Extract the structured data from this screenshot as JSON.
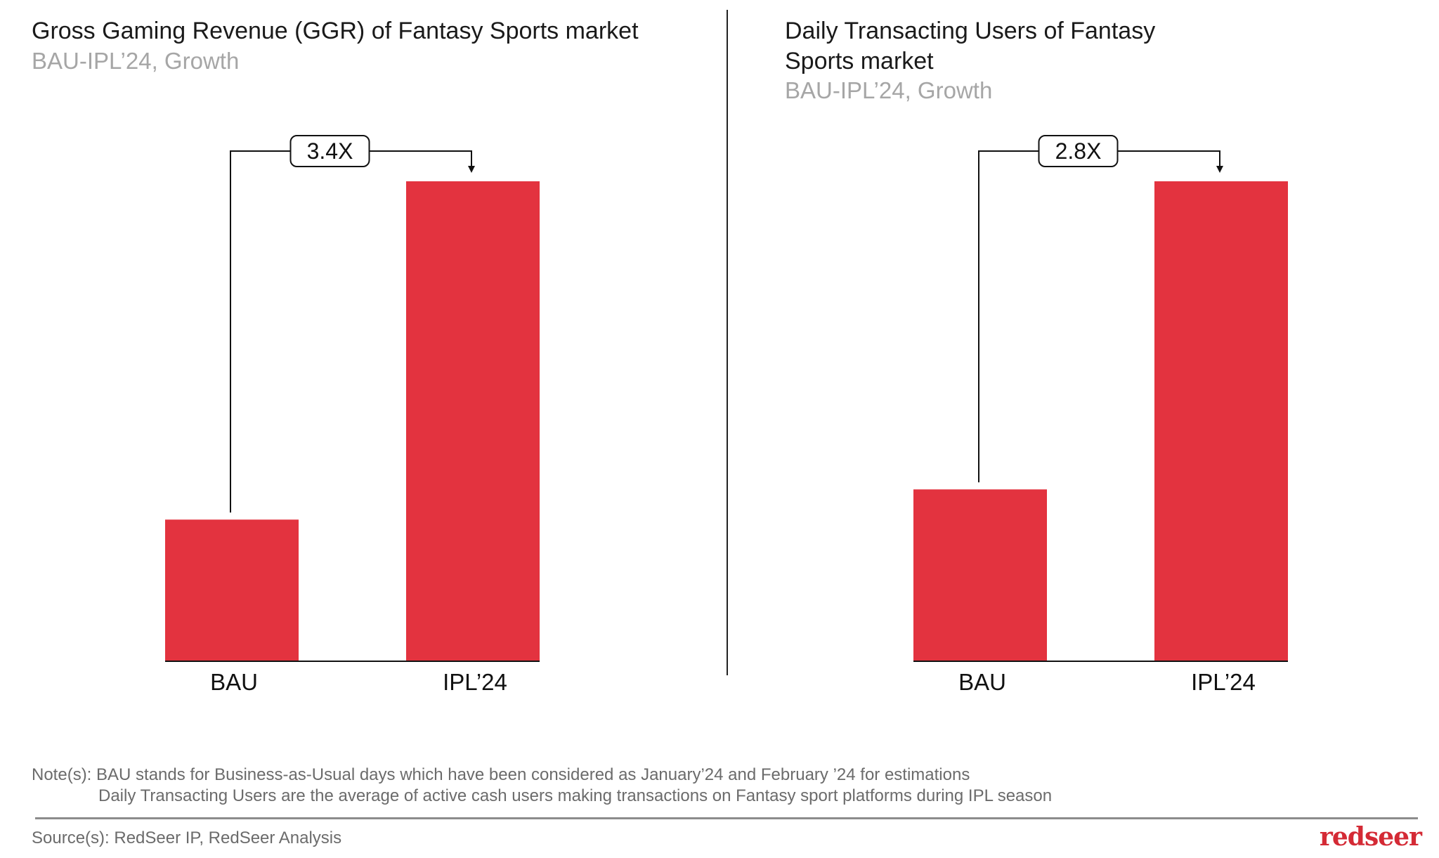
{
  "panels": [
    {
      "title": "Gross Gaming Revenue (GGR) of Fantasy Sports market",
      "subtitle": "BAU-IPL’24, Growth",
      "growth_label": "3.4X"
    },
    {
      "title": "Daily Transacting Users of Fantasy Sports market",
      "subtitle": "BAU-IPL’24, Growth",
      "growth_label": "2.8X"
    }
  ],
  "chart_data": [
    {
      "type": "bar",
      "title": "Gross Gaming Revenue (GGR) of Fantasy Sports market",
      "subtitle": "BAU-IPL’24, Growth",
      "categories": [
        "BAU",
        "IPL’24"
      ],
      "values": [
        1,
        3.4
      ],
      "annotation": "3.4X",
      "color": "#e3333f",
      "grid": false
    },
    {
      "type": "bar",
      "title": "Daily Transacting Users of Fantasy Sports market",
      "subtitle": "BAU-IPL’24, Growth",
      "categories": [
        "BAU",
        "IPL’24"
      ],
      "values": [
        1,
        2.8
      ],
      "annotation": "2.8X",
      "color": "#e3333f",
      "grid": false
    }
  ],
  "notes": {
    "line1": "Note(s): BAU stands for Business-as-Usual days which have been considered as January’24 and February ’24 for estimations",
    "line2": "Daily Transacting Users are the average of active cash users making transactions on Fantasy sport platforms during IPL season"
  },
  "source": "Source(s): RedSeer IP, RedSeer Analysis",
  "logo": "redseer",
  "colors": {
    "bar": "#e3333f",
    "subtitle": "#a6a6a6",
    "brand": "#d42a35"
  }
}
